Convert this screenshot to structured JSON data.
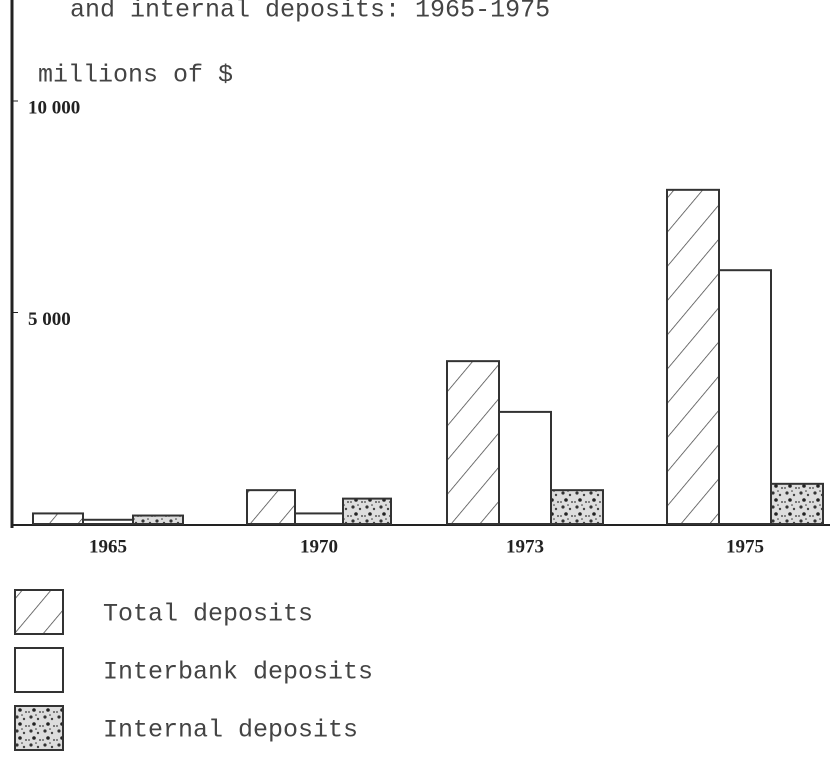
{
  "chart_data": {
    "type": "bar",
    "title": "and internal deposits: 1965-1975",
    "ylabel": "millions of $",
    "categories": [
      "1965",
      "1970",
      "1973",
      "1975"
    ],
    "series": [
      {
        "name": "Total deposits",
        "color": "#333333",
        "pattern": "hatch",
        "values": [
          250,
          800,
          3850,
          7900
        ]
      },
      {
        "name": "Interbank deposits",
        "color": "#333333",
        "pattern": "none",
        "values": [
          100,
          250,
          2650,
          6000
        ]
      },
      {
        "name": "Internal deposits",
        "color": "#333333",
        "pattern": "stipple",
        "values": [
          200,
          600,
          800,
          950
        ]
      }
    ],
    "ylim": [
      0,
      10000
    ],
    "yticks": [
      {
        "value": 5000,
        "label": "5 000"
      },
      {
        "value": 10000,
        "label": "10 000"
      }
    ],
    "grid": false
  }
}
